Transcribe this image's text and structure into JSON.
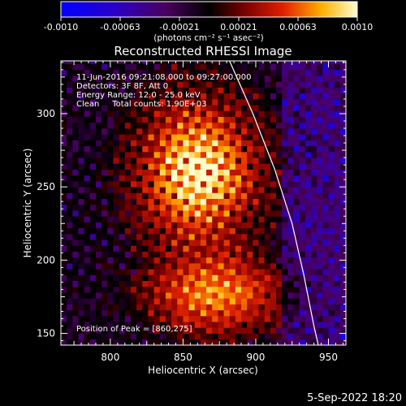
{
  "colorbar": {
    "tick_labels": [
      "-0.0010",
      "-0.00063",
      "-0.00021",
      "0.00021",
      "0.00063",
      "0.0010"
    ],
    "unit_label": "(photons cm⁻² s⁻¹ asec⁻²)",
    "range": [
      -0.001,
      0.001
    ]
  },
  "chart_data": {
    "type": "heatmap",
    "title": "Reconstructed RHESSI Image",
    "xlabel": "Heliocentric X (arcsec)",
    "ylabel": "Heliocentric Y (arcsec)",
    "xlim": [
      766,
      962
    ],
    "ylim": [
      142,
      336
    ],
    "x_ticks": [
      800,
      850,
      900,
      950
    ],
    "y_ticks": [
      150,
      200,
      250,
      300
    ],
    "annotations": [
      "11-Jun-2016 09:21:08.000 to 09:27:00.000",
      "Detectors: 3F 8F, Att 0",
      "Energy Range: 12.0 - 25.0 keV",
      "Clean     Total counts: 1.90E+03"
    ],
    "peak_label": "Position of Peak = [860,275]",
    "peak": [
      860,
      275
    ],
    "limb_arc": [
      [
        882,
        336
      ],
      [
        898,
        300
      ],
      [
        913,
        262
      ],
      [
        925,
        225
      ],
      [
        933,
        190
      ],
      [
        940,
        155
      ],
      [
        943,
        142
      ]
    ]
  },
  "footer": {
    "date": "5-Sep-2022 18:20"
  }
}
